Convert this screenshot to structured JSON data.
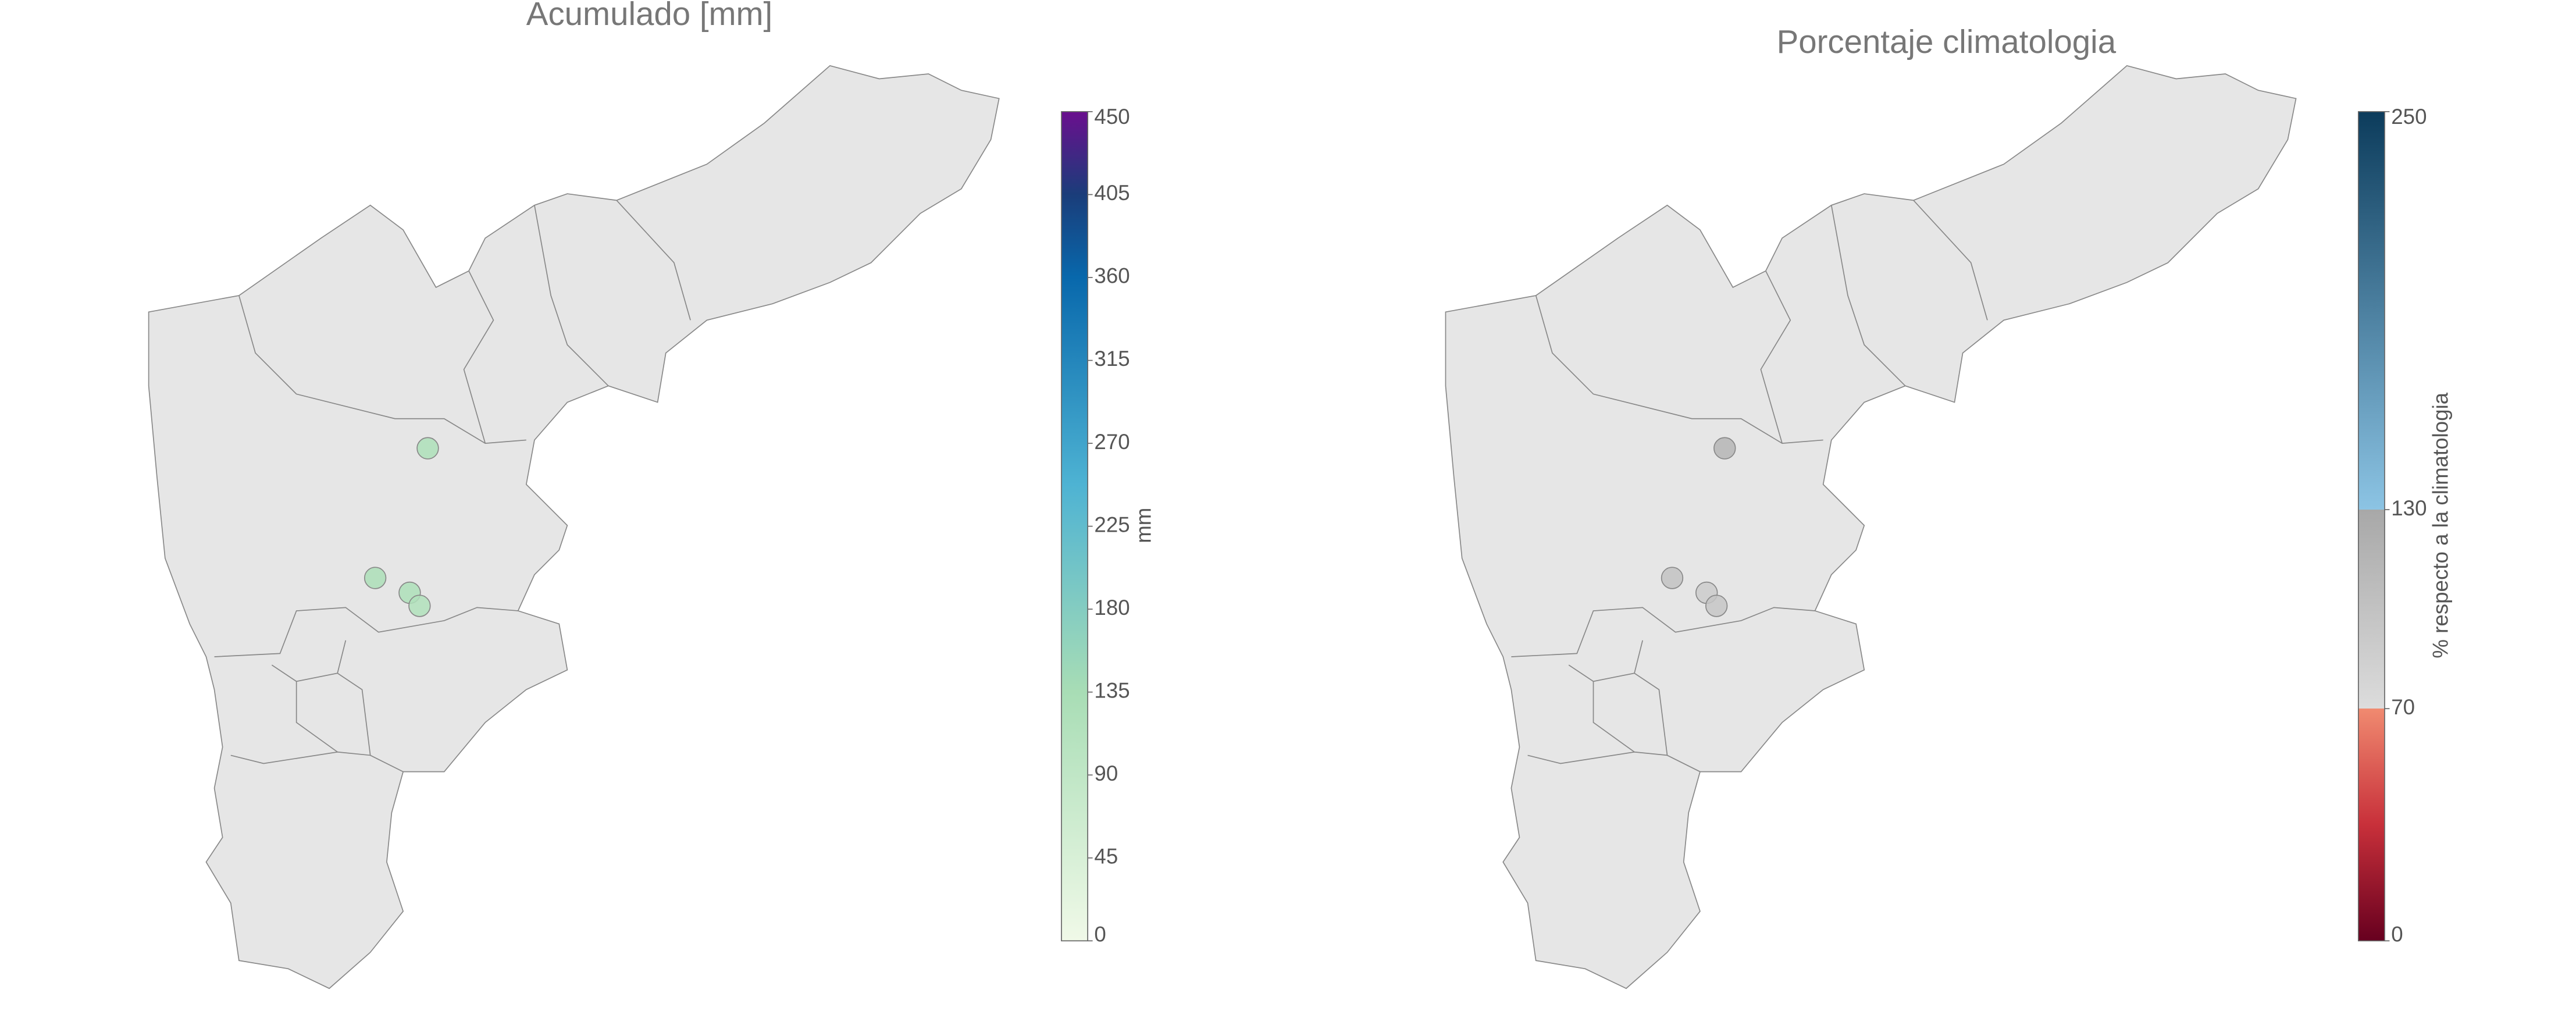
{
  "maps": [
    {
      "title": "Acumulado [mm]",
      "colorbar": {
        "label": "mm",
        "lim": [
          0,
          450
        ],
        "ticks": [
          0,
          45,
          90,
          135,
          180,
          225,
          270,
          315,
          360,
          405,
          450
        ]
      },
      "stations": [
        {
          "value": 125
        },
        {
          "value": 130
        },
        {
          "value": 125
        },
        {
          "value": 120
        }
      ]
    },
    {
      "title": "Porcentaje climatologia",
      "colorbar": {
        "label": "% respecto a la climatologia",
        "lim": [
          0,
          250
        ],
        "ticks": [
          0,
          70,
          130,
          250
        ]
      },
      "stations": [
        {
          "value": 115
        },
        {
          "value": 100
        },
        {
          "value": 90
        },
        {
          "value": 95
        }
      ]
    }
  ]
}
